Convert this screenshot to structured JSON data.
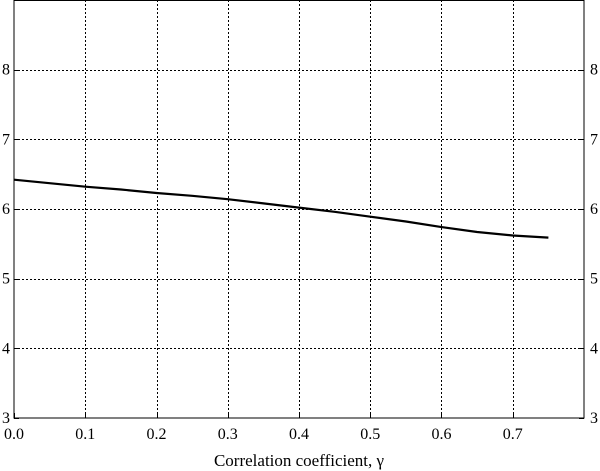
{
  "chart_data": {
    "type": "line",
    "title": "",
    "xlabel": "Correlation coefficient, γ",
    "ylabel": "",
    "xlim": [
      0.0,
      0.8
    ],
    "ylim": [
      3,
      9
    ],
    "xticks": [
      "0.0",
      "0.1",
      "0.2",
      "0.3",
      "0.4",
      "0.5",
      "0.6",
      "0.7"
    ],
    "yticks": [
      "3",
      "4",
      "5",
      "6",
      "7",
      "8"
    ],
    "grid": true,
    "grid_style": "dotted",
    "series": [
      {
        "line_color": "#000000",
        "x": [
          0.0,
          0.05,
          0.1,
          0.15,
          0.2,
          0.25,
          0.3,
          0.35,
          0.4,
          0.45,
          0.5,
          0.55,
          0.6,
          0.65,
          0.7,
          0.75
        ],
        "y": [
          6.42,
          6.37,
          6.32,
          6.28,
          6.23,
          6.19,
          6.14,
          6.08,
          6.02,
          5.96,
          5.89,
          5.82,
          5.74,
          5.67,
          5.62,
          5.59
        ]
      }
    ]
  }
}
